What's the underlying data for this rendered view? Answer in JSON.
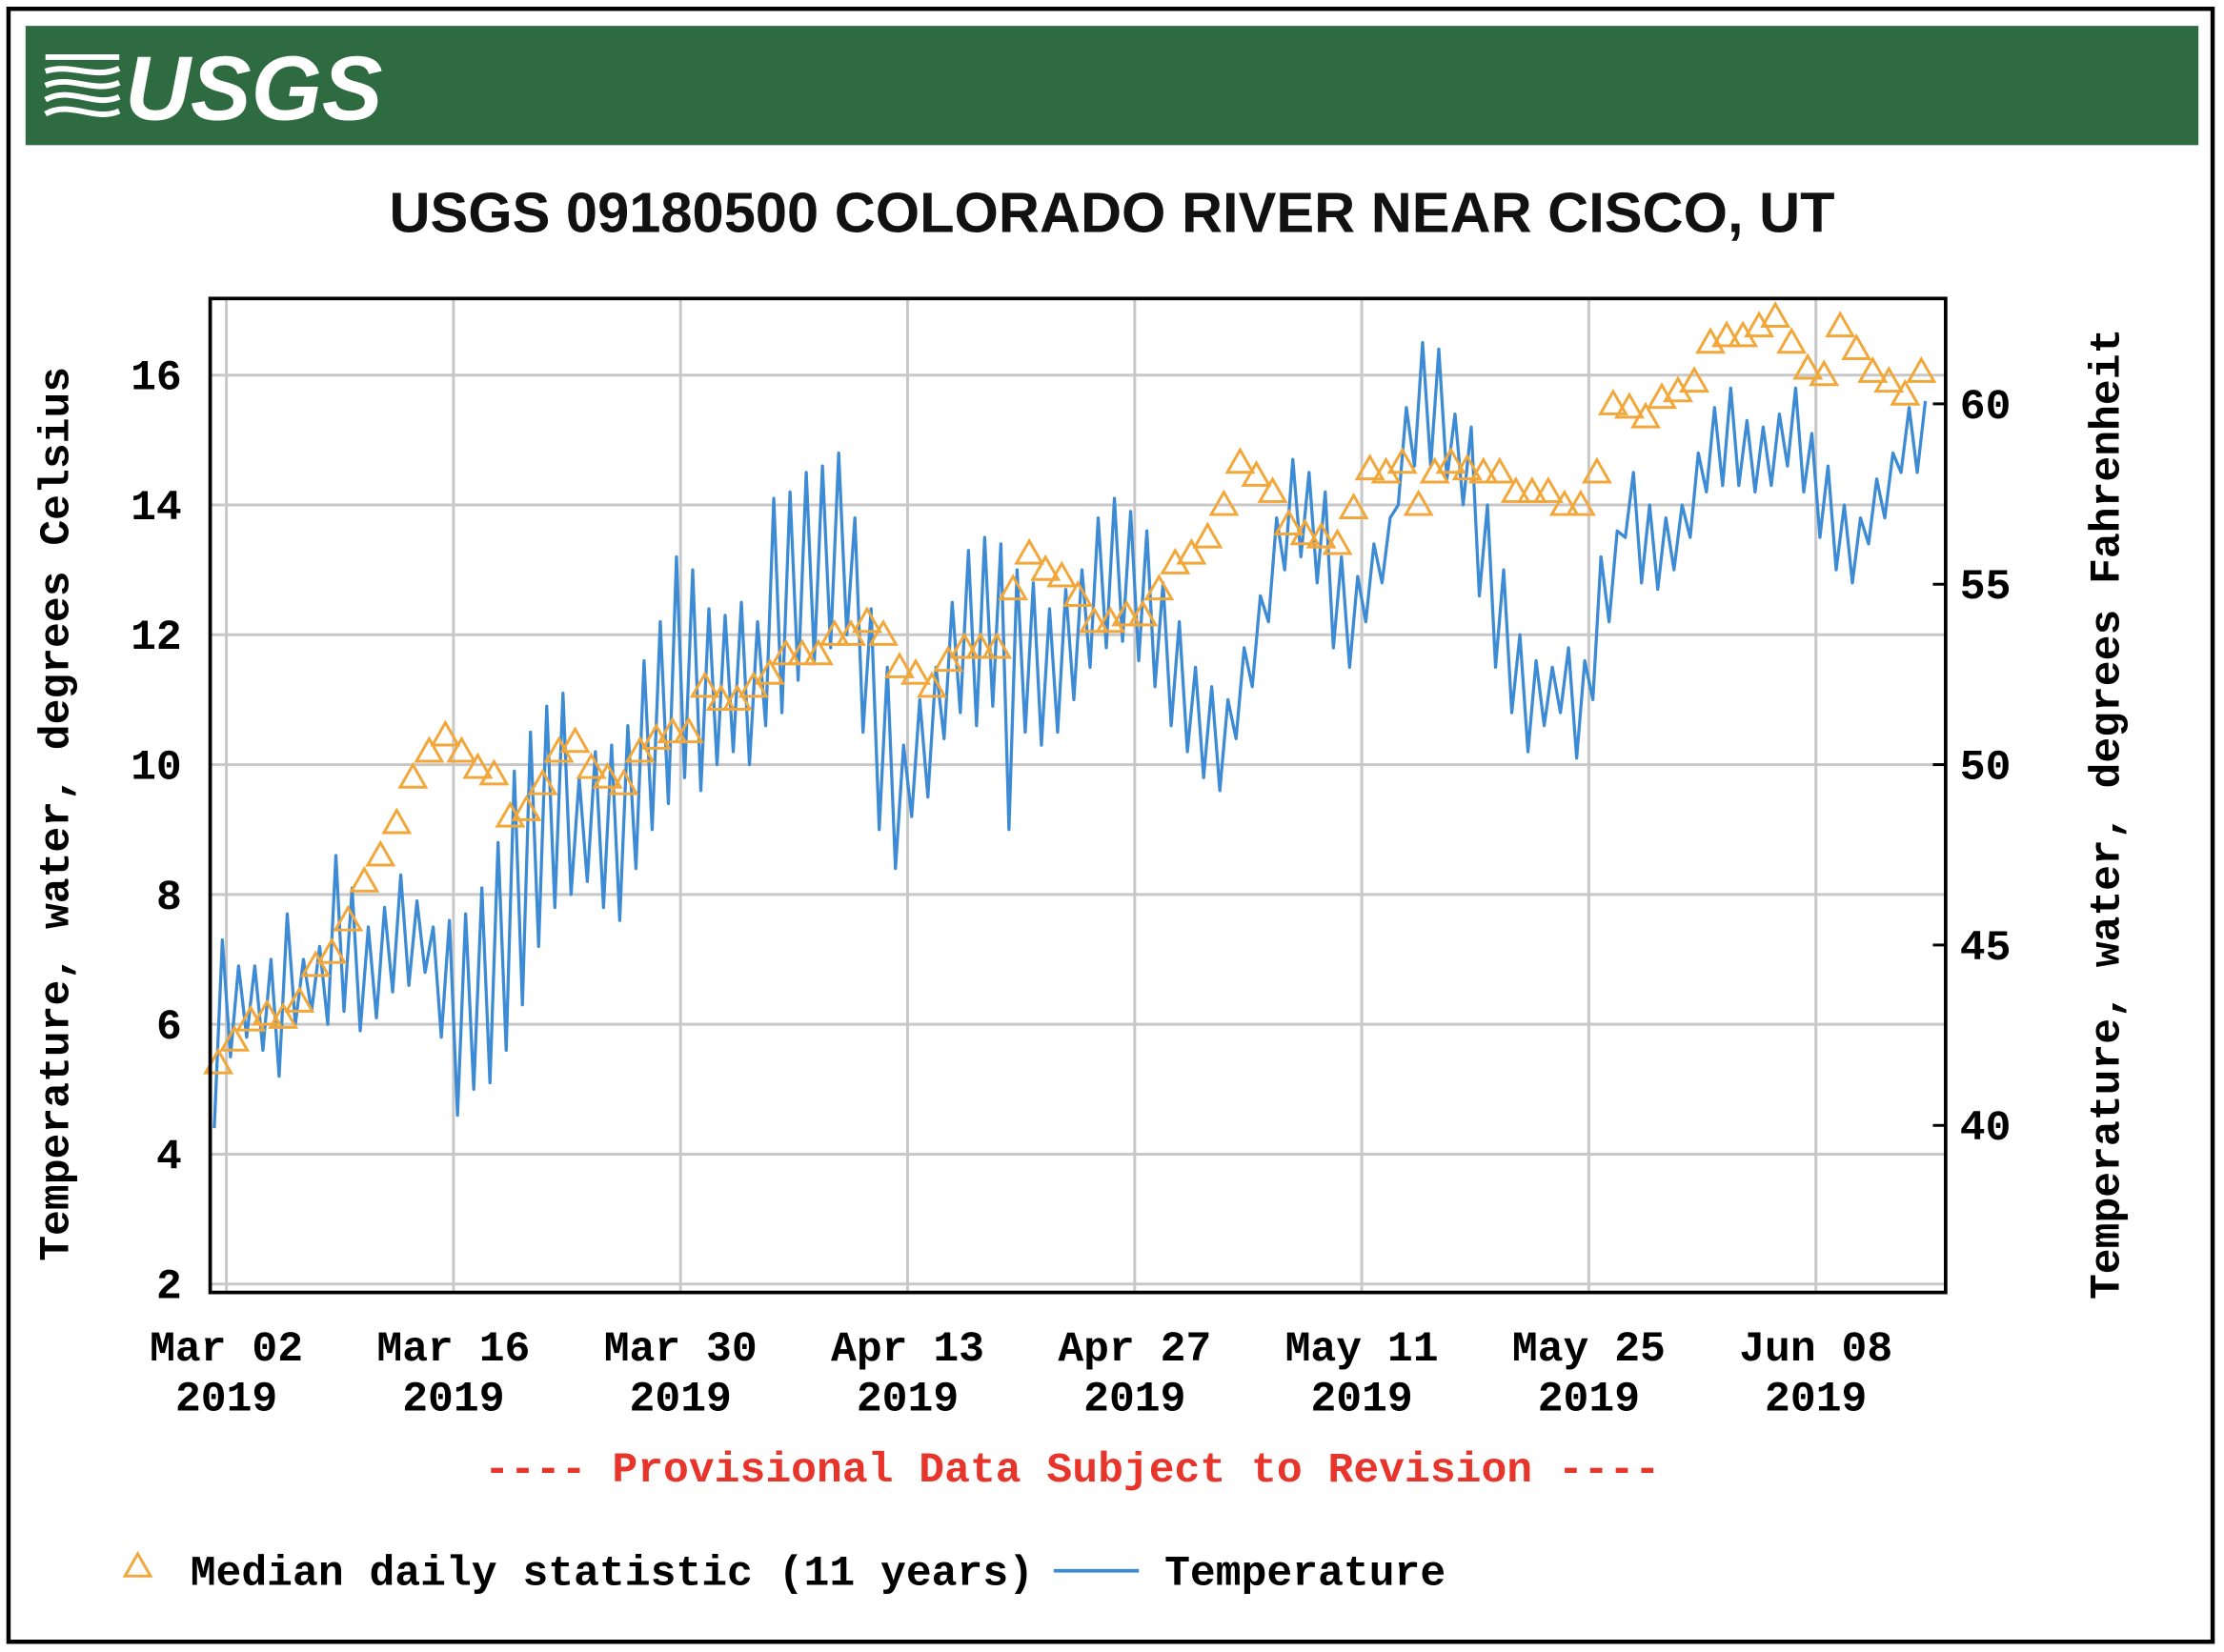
{
  "logo": "USGS",
  "chart_data": {
    "type": "line",
    "title": "USGS 09180500 COLORADO RIVER NEAR CISCO, UT",
    "ylabel": "Temperature, water, degrees Celsius",
    "y2label": "Temperature, water, degrees Fahrenheit",
    "annotation": "---- Provisional Data Subject to Revision ----",
    "grid": true,
    "legend": "bottom",
    "xlim": [
      "2019-03-01",
      "2019-06-16"
    ],
    "xticks": [
      {
        "value": "2019-03-02",
        "label": [
          "Mar 02",
          "2019"
        ]
      },
      {
        "value": "2019-03-16",
        "label": [
          "Mar 16",
          "2019"
        ]
      },
      {
        "value": "2019-03-30",
        "label": [
          "Mar 30",
          "2019"
        ]
      },
      {
        "value": "2019-04-13",
        "label": [
          "Apr 13",
          "2019"
        ]
      },
      {
        "value": "2019-04-27",
        "label": [
          "Apr 27",
          "2019"
        ]
      },
      {
        "value": "2019-05-11",
        "label": [
          "May 11",
          "2019"
        ]
      },
      {
        "value": "2019-05-25",
        "label": [
          "May 25",
          "2019"
        ]
      },
      {
        "value": "2019-06-08",
        "label": [
          "Jun 08",
          "2019"
        ]
      }
    ],
    "ylim": [
      1.87,
      17.18
    ],
    "yticks": [
      2,
      4,
      6,
      8,
      10,
      12,
      14,
      16
    ],
    "y2lim": [
      35.37,
      62.92
    ],
    "y2ticks": [
      40,
      45,
      50,
      55,
      60
    ],
    "x": [
      "2019-03-01",
      "2019-03-02",
      "2019-03-03",
      "2019-03-04",
      "2019-03-05",
      "2019-03-06",
      "2019-03-07",
      "2019-03-08",
      "2019-03-09",
      "2019-03-10",
      "2019-03-11",
      "2019-03-12",
      "2019-03-13",
      "2019-03-14",
      "2019-03-15",
      "2019-03-16",
      "2019-03-17",
      "2019-03-18",
      "2019-03-19",
      "2019-03-20",
      "2019-03-21",
      "2019-03-22",
      "2019-03-23",
      "2019-03-24",
      "2019-03-25",
      "2019-03-26",
      "2019-03-27",
      "2019-03-28",
      "2019-03-29",
      "2019-03-30",
      "2019-03-31",
      "2019-04-01",
      "2019-04-02",
      "2019-04-03",
      "2019-04-04",
      "2019-04-05",
      "2019-04-06",
      "2019-04-07",
      "2019-04-08",
      "2019-04-09",
      "2019-04-10",
      "2019-04-11",
      "2019-04-12",
      "2019-04-13",
      "2019-04-14",
      "2019-04-15",
      "2019-04-16",
      "2019-04-17",
      "2019-04-18",
      "2019-04-19",
      "2019-04-20",
      "2019-04-21",
      "2019-04-22",
      "2019-04-23",
      "2019-04-24",
      "2019-04-25",
      "2019-04-26",
      "2019-04-27",
      "2019-04-28",
      "2019-04-29",
      "2019-04-30",
      "2019-05-01",
      "2019-05-02",
      "2019-05-03",
      "2019-05-04",
      "2019-05-05",
      "2019-05-06",
      "2019-05-07",
      "2019-05-08",
      "2019-05-09",
      "2019-05-10",
      "2019-05-11",
      "2019-05-12",
      "2019-05-13",
      "2019-05-14",
      "2019-05-15",
      "2019-05-16",
      "2019-05-17",
      "2019-05-18",
      "2019-05-19",
      "2019-05-20",
      "2019-05-21",
      "2019-05-22",
      "2019-05-23",
      "2019-05-24",
      "2019-05-25",
      "2019-05-26",
      "2019-05-27",
      "2019-05-28",
      "2019-05-29",
      "2019-05-30",
      "2019-05-31",
      "2019-06-01",
      "2019-06-02",
      "2019-06-03",
      "2019-06-04",
      "2019-06-05",
      "2019-06-06",
      "2019-06-07",
      "2019-06-08",
      "2019-06-09",
      "2019-06-10",
      "2019-06-11",
      "2019-06-12",
      "2019-06-13",
      "2019-06-14"
    ],
    "series": [
      {
        "name": "Median daily statistic (11 years)",
        "color": "#f2a73b",
        "style": "triangle",
        "values": [
          5.4,
          5.75,
          6.06,
          6.15,
          6.1,
          6.35,
          6.9,
          7.1,
          7.6,
          8.2,
          8.6,
          9.1,
          9.8,
          10.2,
          10.45,
          10.2,
          9.95,
          9.85,
          9.2,
          9.3,
          9.7,
          10.2,
          10.35,
          9.95,
          9.8,
          9.7,
          10.2,
          10.4,
          10.5,
          10.5,
          11.2,
          11.0,
          11.0,
          11.2,
          11.4,
          11.7,
          11.7,
          11.7,
          12.0,
          12.0,
          12.2,
          12.0,
          11.5,
          11.4,
          11.2,
          11.6,
          11.8,
          11.8,
          11.8,
          12.7,
          13.25,
          13.0,
          12.9,
          12.6,
          12.2,
          12.2,
          12.3,
          12.3,
          12.7,
          13.1,
          13.25,
          13.5,
          14.0,
          14.65,
          14.45,
          14.2,
          13.7,
          13.55,
          13.5,
          13.4,
          13.95,
          14.55,
          14.5,
          14.65,
          14.0,
          14.5,
          14.65,
          14.55,
          14.5,
          14.5,
          14.2,
          14.2,
          14.2,
          14.0,
          14.0,
          14.5,
          15.55,
          15.5,
          15.35,
          15.65,
          15.75,
          15.9,
          16.5,
          16.6,
          16.6,
          16.75,
          16.9,
          16.5,
          16.1,
          16.0,
          16.75,
          16.4,
          16.05,
          15.9,
          15.7,
          16.05
        ]
      },
      {
        "name": "Temperature",
        "color": "#3d8bd4",
        "style": "line",
        "values": [
          [
            4.4,
            7.3
          ],
          [
            5.5,
            6.9
          ],
          [
            5.8,
            6.9
          ],
          [
            5.6,
            7.0
          ],
          [
            5.2,
            7.7
          ],
          [
            6.0,
            7.0
          ],
          [
            6.2,
            7.2
          ],
          [
            6.0,
            8.6
          ],
          [
            6.2,
            8.1
          ],
          [
            5.9,
            7.5
          ],
          [
            6.1,
            7.8
          ],
          [
            6.5,
            8.3
          ],
          [
            6.6,
            7.9
          ],
          [
            6.8,
            7.5
          ],
          [
            5.8,
            7.6
          ],
          [
            4.6,
            7.7
          ],
          [
            5.0,
            8.1
          ],
          [
            5.1,
            8.8
          ],
          [
            5.6,
            9.9
          ],
          [
            6.3,
            10.5
          ],
          [
            7.2,
            10.9
          ],
          [
            7.8,
            11.1
          ],
          [
            8.0,
            9.8
          ],
          [
            8.2,
            10.2
          ],
          [
            7.8,
            10.3
          ],
          [
            7.6,
            10.6
          ],
          [
            8.4,
            11.6
          ],
          [
            9.0,
            12.2
          ],
          [
            9.4,
            13.2
          ],
          [
            9.8,
            13.0
          ],
          [
            9.6,
            12.4
          ],
          [
            10.0,
            12.3
          ],
          [
            10.2,
            12.5
          ],
          [
            10.0,
            12.2
          ],
          [
            10.6,
            14.1
          ],
          [
            10.8,
            14.2
          ],
          [
            11.3,
            14.5
          ],
          [
            11.6,
            14.6
          ],
          [
            11.8,
            14.8
          ],
          [
            12.0,
            13.8
          ],
          [
            10.5,
            12.4
          ],
          [
            9.0,
            11.5
          ],
          [
            8.4,
            10.3
          ],
          [
            9.2,
            11.0
          ],
          [
            9.5,
            11.5
          ],
          [
            10.4,
            12.5
          ],
          [
            10.8,
            13.3
          ],
          [
            10.6,
            13.5
          ],
          [
            10.9,
            13.4
          ],
          [
            9.0,
            13.0
          ],
          [
            10.5,
            12.8
          ],
          [
            10.3,
            12.4
          ],
          [
            10.5,
            12.7
          ],
          [
            11.0,
            13.0
          ],
          [
            11.5,
            13.8
          ],
          [
            11.8,
            14.1
          ],
          [
            11.9,
            13.9
          ],
          [
            11.6,
            13.6
          ],
          [
            11.2,
            12.8
          ],
          [
            10.6,
            12.2
          ],
          [
            10.2,
            11.5
          ],
          [
            9.8,
            11.2
          ],
          [
            9.6,
            11.0
          ],
          [
            10.4,
            11.8
          ],
          [
            11.2,
            12.6
          ],
          [
            12.2,
            13.8
          ],
          [
            13.0,
            14.7
          ],
          [
            13.2,
            14.5
          ],
          [
            12.8,
            14.2
          ],
          [
            11.8,
            13.2
          ],
          [
            11.5,
            12.9
          ],
          [
            12.2,
            13.4
          ],
          [
            12.8,
            13.8
          ],
          [
            14.0,
            15.5
          ],
          [
            14.6,
            16.5
          ],
          [
            14.6,
            16.4
          ],
          [
            14.4,
            15.4
          ],
          [
            14.0,
            15.2
          ],
          [
            12.6,
            14.0
          ],
          [
            11.5,
            13.0
          ],
          [
            10.8,
            12.0
          ],
          [
            10.2,
            11.6
          ],
          [
            10.6,
            11.5
          ],
          [
            10.8,
            11.8
          ],
          [
            10.1,
            11.6
          ],
          [
            11.0,
            13.2
          ],
          [
            12.2,
            13.6
          ],
          [
            13.5,
            14.5
          ],
          [
            12.8,
            14.0
          ],
          [
            12.7,
            13.8
          ],
          [
            13.0,
            14.0
          ],
          [
            13.5,
            14.8
          ],
          [
            14.2,
            15.5
          ],
          [
            14.3,
            15.8
          ],
          [
            14.3,
            15.3
          ],
          [
            14.2,
            15.2
          ],
          [
            14.3,
            15.4
          ],
          [
            14.6,
            15.8
          ],
          [
            14.2,
            15.1
          ],
          [
            13.5,
            14.6
          ],
          [
            13.0,
            14.0
          ],
          [
            12.8,
            13.8
          ],
          [
            13.4,
            14.4
          ],
          [
            13.8,
            14.8
          ],
          [
            14.5,
            15.5
          ],
          [
            14.5,
            15.6
          ]
        ]
      }
    ]
  }
}
